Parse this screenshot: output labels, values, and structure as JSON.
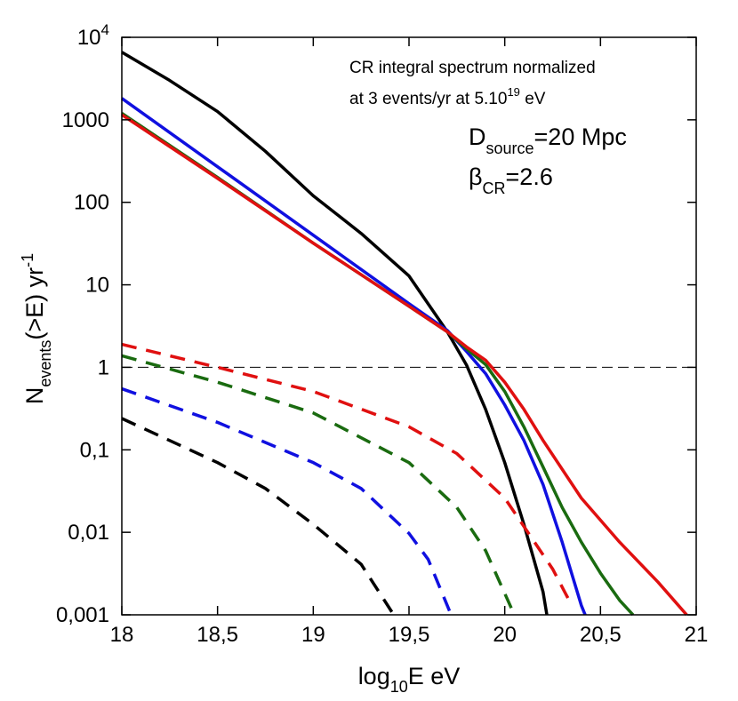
{
  "chart_data": {
    "type": "line",
    "ylog": true,
    "xlim": [
      18,
      21
    ],
    "ylim": [
      0.001,
      10000
    ],
    "xticks": [
      18,
      {
        "value": 18.5,
        "label": "18,5"
      },
      19,
      {
        "value": 19.5,
        "label": "19,5"
      },
      20,
      {
        "value": 20.5,
        "label": "20,5"
      },
      21
    ],
    "yticks": [
      {
        "value": 0.001,
        "label": "0,001"
      },
      {
        "value": 0.01,
        "label": "0,01"
      },
      {
        "value": 0.1,
        "label": "0,1"
      },
      1,
      10,
      100,
      1000,
      {
        "value": 10000,
        "label": "10",
        "sup": "4"
      }
    ],
    "xlabel": [
      "log",
      "10",
      "E eV"
    ],
    "ylabel": [
      "N",
      "events",
      "(>E) yr",
      "-1"
    ],
    "annotations": [
      [
        "CR integral spectrum normalized"
      ],
      [
        "at 3 events/yr at 5.10",
        "19",
        " eV"
      ],
      [
        "D",
        "source",
        "=20 Mpc"
      ],
      [
        "β",
        "CR",
        "=2.6"
      ]
    ],
    "hline": 1,
    "series": [
      {
        "color": "#000000",
        "linestyle": "solid",
        "x": [
          18,
          18.25,
          18.5,
          18.75,
          19,
          19.25,
          19.5,
          19.7,
          19.8,
          19.9,
          20.0,
          20.1,
          20.2,
          20.22
        ],
        "values": [
          6600,
          3000,
          1260,
          415,
          120,
          42,
          12.8,
          2.7,
          1.07,
          0.31,
          0.07,
          0.0125,
          0.0019,
          0.001
        ]
      },
      {
        "color": "#1010e0",
        "linestyle": "solid",
        "x": [
          18,
          18.5,
          19,
          19.5,
          19.7,
          19.8,
          19.9,
          20.0,
          20.1,
          20.2,
          20.3,
          20.4,
          20.42
        ],
        "values": [
          1820,
          270,
          40,
          5.9,
          2.8,
          1.56,
          0.84,
          0.35,
          0.13,
          0.038,
          0.0076,
          0.0013,
          0.001
        ]
      },
      {
        "color": "#1a6b10",
        "linestyle": "solid",
        "x": [
          18,
          18.5,
          19,
          19.5,
          19.7,
          19.8,
          19.9,
          20.0,
          20.1,
          20.2,
          20.3,
          20.4,
          20.5,
          20.6,
          20.67
        ],
        "values": [
          1200,
          200,
          32,
          5.5,
          2.7,
          1.68,
          1.08,
          0.51,
          0.19,
          0.062,
          0.02,
          0.0076,
          0.0032,
          0.0015,
          0.001
        ]
      },
      {
        "color": "#e01010",
        "linestyle": "solid",
        "x": [
          18,
          18.5,
          19,
          19.5,
          19.7,
          19.8,
          19.9,
          20.0,
          20.1,
          20.2,
          20.4,
          20.6,
          20.8,
          20.95
        ],
        "values": [
          1150,
          195,
          32,
          5.5,
          2.7,
          1.77,
          1.22,
          0.66,
          0.31,
          0.13,
          0.026,
          0.0076,
          0.0025,
          0.001
        ]
      },
      {
        "color": "#e01010",
        "linestyle": "dashed",
        "x": [
          18,
          18.5,
          19,
          19.5,
          19.75,
          20.0,
          20.25,
          20.35
        ],
        "values": [
          1.9,
          1.0,
          0.51,
          0.19,
          0.09,
          0.026,
          0.0036,
          0.0013
        ]
      },
      {
        "color": "#1a6b10",
        "linestyle": "dashed",
        "x": [
          18,
          18.5,
          19,
          19.5,
          19.75,
          19.9,
          20.05
        ],
        "values": [
          1.38,
          0.66,
          0.28,
          0.07,
          0.02,
          0.006,
          0.001
        ]
      },
      {
        "color": "#1010e0",
        "linestyle": "dashed",
        "x": [
          18,
          18.5,
          19,
          19.25,
          19.5,
          19.6,
          19.72
        ],
        "values": [
          0.55,
          0.215,
          0.07,
          0.034,
          0.0097,
          0.0047,
          0.001
        ]
      },
      {
        "color": "#000000",
        "linestyle": "dashed",
        "x": [
          18,
          18.5,
          18.75,
          19,
          19.25,
          19.42
        ],
        "values": [
          0.24,
          0.07,
          0.034,
          0.0125,
          0.0041,
          0.001
        ]
      }
    ]
  }
}
